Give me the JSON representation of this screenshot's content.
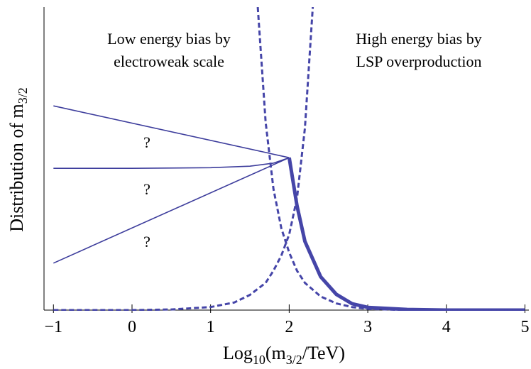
{
  "chart_data": {
    "type": "line",
    "annotations": [
      "Low energy bias by",
      "electroweak scale",
      "High energy bias by",
      "LSP overproduction",
      "?",
      "?",
      "?"
    ],
    "ylabel": [
      "Distribution of m",
      "3/2"
    ],
    "xlabel": [
      "Log",
      "10",
      "(m",
      "3/2",
      "/TeV)"
    ],
    "xlim": [
      -1.12,
      5.05
    ],
    "ylim": [
      0,
      1
    ],
    "xticks": [
      {
        "value": -1,
        "label": "−1"
      },
      0,
      1,
      2,
      3,
      4,
      5
    ],
    "series": [
      {
        "color": "#3d3d9c",
        "style": "solid",
        "width": 1.6,
        "x": [
          -1,
          2
        ],
        "values": [
          0.674,
          0.503
        ]
      },
      {
        "color": "#3d3d9c",
        "style": "solid",
        "width": 1.6,
        "x": [
          -1,
          0,
          1,
          1.5,
          1.8,
          2
        ],
        "values": [
          0.468,
          0.468,
          0.47,
          0.475,
          0.485,
          0.503
        ]
      },
      {
        "color": "#3d3d9c",
        "style": "solid",
        "width": 1.6,
        "x": [
          -1,
          2
        ],
        "values": [
          0.155,
          0.503
        ]
      },
      {
        "color": "#4545a8",
        "style": "solid",
        "width": 5,
        "x": [
          2,
          2.1,
          2.2,
          2.4,
          2.6,
          2.8,
          3,
          3.5,
          4,
          5
        ],
        "values": [
          0.503,
          0.344,
          0.227,
          0.11,
          0.052,
          0.021,
          0.009,
          0.002,
          0,
          0
        ]
      },
      {
        "color": "#4545a8",
        "style": "dashed",
        "width": 3,
        "x": [
          -1,
          0,
          0.5,
          1,
          1.3,
          1.5,
          1.7,
          1.8,
          1.9,
          2,
          2.1,
          2.2,
          2.3
        ],
        "values": [
          0,
          0,
          0.002,
          0.01,
          0.025,
          0.05,
          0.09,
          0.13,
          0.18,
          0.25,
          0.37,
          0.6,
          1
        ]
      },
      {
        "color": "#4545a8",
        "style": "dashed",
        "width": 3,
        "x": [
          1.6,
          1.7,
          1.8,
          1.9,
          2,
          2.1,
          2.2,
          2.4,
          2.6,
          2.8,
          3,
          3.5,
          5
        ],
        "values": [
          1,
          0.62,
          0.4,
          0.27,
          0.19,
          0.13,
          0.09,
          0.045,
          0.022,
          0.01,
          0.004,
          0,
          0
        ]
      }
    ]
  }
}
